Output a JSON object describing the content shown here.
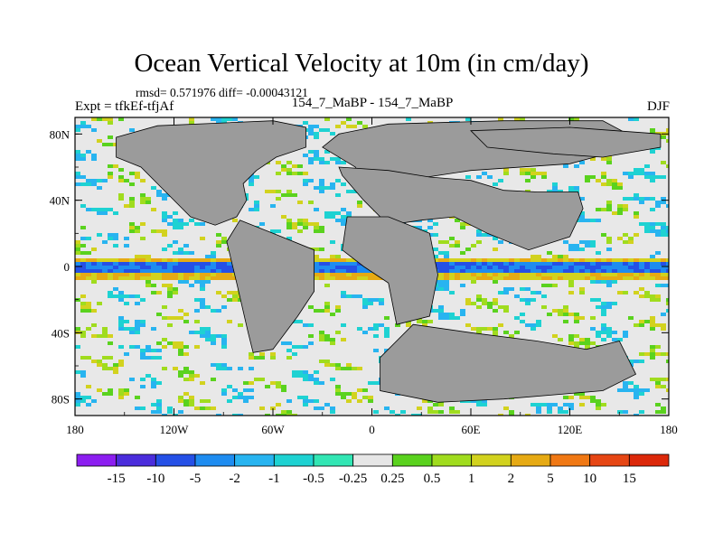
{
  "header": {
    "title": "Ocean Vertical Velocity at 10m (in cm/day)",
    "stats": "rmsd= 0.571976 diff= -0.00043121",
    "experiment": "Expt = tfkEf-tfjAf",
    "runs": "154_7_MaBP - 154_7_MaBP",
    "season": "DJF"
  },
  "chart_data": {
    "type": "heatmap",
    "title": "Ocean Vertical Velocity at 10m (in cm/day)",
    "xlabel": "",
    "ylabel": "",
    "x_range": [
      -180,
      180
    ],
    "y_range": [
      -90,
      90
    ],
    "x_ticks": [
      {
        "value": -180,
        "label": "180"
      },
      {
        "value": -120,
        "label": "120W"
      },
      {
        "value": -60,
        "label": "60W"
      },
      {
        "value": 0,
        "label": "0"
      },
      {
        "value": 60,
        "label": "60E"
      },
      {
        "value": 120,
        "label": "120E"
      },
      {
        "value": 180,
        "label": "180"
      }
    ],
    "y_ticks": [
      {
        "value": 80,
        "label": "80N"
      },
      {
        "value": 40,
        "label": "40N"
      },
      {
        "value": 0,
        "label": "0"
      },
      {
        "value": -40,
        "label": "40S"
      },
      {
        "value": -80,
        "label": "80S"
      }
    ],
    "colorbar": {
      "boundaries": [
        "-15",
        "-10",
        "-5",
        "-2",
        "-1",
        "-0.5",
        "-0.25",
        "0.25",
        "0.5",
        "1",
        "2",
        "5",
        "10",
        "15"
      ],
      "colors": [
        "#8c1ef0",
        "#4b2ddc",
        "#2550e6",
        "#1e8cf0",
        "#28b4f0",
        "#1ed2d2",
        "#32e6b4",
        "#e6e6e6",
        "#5ad21e",
        "#a0dc1e",
        "#d2d21e",
        "#e6aa14",
        "#f07814",
        "#e64614",
        "#dc280a"
      ]
    },
    "land_color": "#9b9b9b",
    "description": "difference field, mostly near zero; equatorial band shows negative (blue) and positive (orange) anomalies"
  }
}
